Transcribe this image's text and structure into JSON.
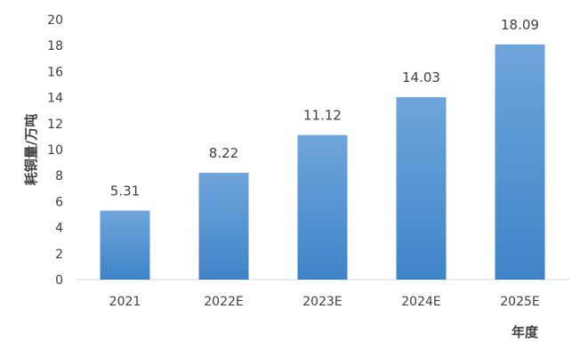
{
  "chart_data": {
    "type": "bar",
    "categories": [
      "2021",
      "2022E",
      "2023E",
      "2024E",
      "2025E"
    ],
    "values": [
      5.31,
      8.22,
      11.12,
      14.03,
      18.09
    ],
    "value_labels": [
      "5.31",
      "8.22",
      "11.12",
      "14.03",
      "18.09"
    ],
    "title": "",
    "xlabel": "年度",
    "ylabel": "耗铜量/万吨",
    "ylim": [
      0,
      20
    ],
    "yticks": [
      "0",
      "2",
      "4",
      "6",
      "8",
      "10",
      "12",
      "14",
      "16",
      "18",
      "20"
    ],
    "grid": false,
    "legend": "none",
    "bar_color_top": "#6fa5db",
    "bar_color_bottom": "#3f84c8"
  }
}
